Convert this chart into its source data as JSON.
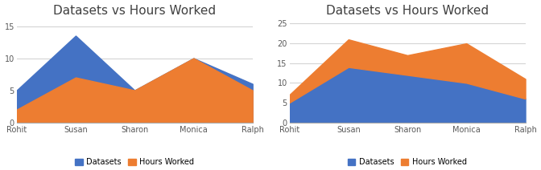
{
  "categories": [
    "Rohit",
    "Susan",
    "Sharon",
    "Monica",
    "Ralph"
  ],
  "chart1": {
    "title": "Datasets vs Hours Worked",
    "datasets": [
      5,
      13.5,
      5,
      10,
      6
    ],
    "hours_worked": [
      2,
      7,
      5,
      10,
      5
    ],
    "ylim": [
      0,
      16
    ],
    "yticks": [
      0,
      5,
      10,
      15
    ],
    "color_datasets": "#4472C4",
    "color_hours": "#ED7D31"
  },
  "chart2": {
    "title": "Datasets vs Hours Worked",
    "datasets": [
      5,
      14,
      12,
      10,
      6
    ],
    "hours_worked": [
      2,
      7,
      5,
      10,
      5
    ],
    "ylim": [
      0,
      26
    ],
    "yticks": [
      0,
      5,
      10,
      15,
      20,
      25
    ],
    "color_datasets": "#4472C4",
    "color_hours": "#ED7D31"
  },
  "legend_labels": [
    "Datasets",
    "Hours Worked"
  ],
  "background_color": "#ffffff",
  "grid_color": "#d4d4d4",
  "title_color": "#404040",
  "tick_color": "#595959",
  "title_fontsize": 11,
  "tick_fontsize": 7,
  "legend_fontsize": 7
}
